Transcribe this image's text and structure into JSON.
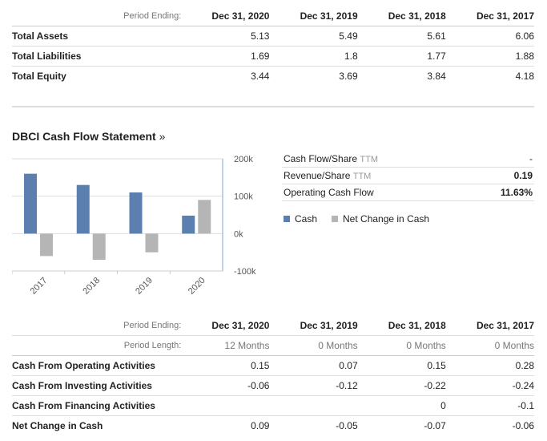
{
  "balance": {
    "period_label": "Period Ending:",
    "periods": [
      "Dec 31, 2020",
      "Dec 31, 2019",
      "Dec 31, 2018",
      "Dec 31, 2017"
    ],
    "rows": [
      {
        "label": "Total Assets",
        "values": [
          "5.13",
          "5.49",
          "5.61",
          "6.06"
        ]
      },
      {
        "label": "Total Liabilities",
        "values": [
          "1.69",
          "1.8",
          "1.77",
          "1.88"
        ]
      },
      {
        "label": "Total Equity",
        "values": [
          "3.44",
          "3.69",
          "3.84",
          "4.18"
        ]
      }
    ]
  },
  "cashflow": {
    "title": "DBCI Cash Flow Statement",
    "title_suffix": "»",
    "metrics": [
      {
        "label": "Cash Flow/Share",
        "ttm": "TTM",
        "value": "-"
      },
      {
        "label": "Revenue/Share",
        "ttm": "TTM",
        "value": "0.19"
      },
      {
        "label": "Operating Cash Flow",
        "ttm": "",
        "value": "11.63%"
      }
    ],
    "legend": [
      {
        "label": "Cash",
        "color": "#5b7fae"
      },
      {
        "label": "Net Change in Cash",
        "color": "#b5b5b5"
      }
    ],
    "table": {
      "period_label": "Period Ending:",
      "length_label": "Period Length:",
      "periods": [
        "Dec 31, 2020",
        "Dec 31, 2019",
        "Dec 31, 2018",
        "Dec 31, 2017"
      ],
      "lengths": [
        "12 Months",
        "0 Months",
        "0 Months",
        "0 Months"
      ],
      "rows": [
        {
          "label": "Cash From Operating Activities",
          "values": [
            "0.15",
            "0.07",
            "0.15",
            "0.28"
          ]
        },
        {
          "label": "Cash From Investing Activities",
          "values": [
            "-0.06",
            "-0.12",
            "-0.22",
            "-0.24"
          ]
        },
        {
          "label": "Cash From Financing Activities",
          "values": [
            "",
            "",
            "0",
            "-0.1"
          ]
        },
        {
          "label": "Net Change in Cash",
          "values": [
            "0.09",
            "-0.05",
            "-0.07",
            "-0.06"
          ]
        }
      ]
    }
  },
  "chart_data": {
    "type": "bar",
    "categories": [
      "2017",
      "2018",
      "2019",
      "2020"
    ],
    "series": [
      {
        "name": "Cash",
        "values": [
          160000,
          130000,
          110000,
          48000
        ]
      },
      {
        "name": "Net Change in Cash",
        "values": [
          -60000,
          -70000,
          -50000,
          90000
        ]
      }
    ],
    "yticks": [
      "200k",
      "100k",
      "0k",
      "-100k"
    ],
    "ylim": [
      -100000,
      200000
    ],
    "colors": [
      "#5b7fae",
      "#b5b5b5"
    ]
  }
}
